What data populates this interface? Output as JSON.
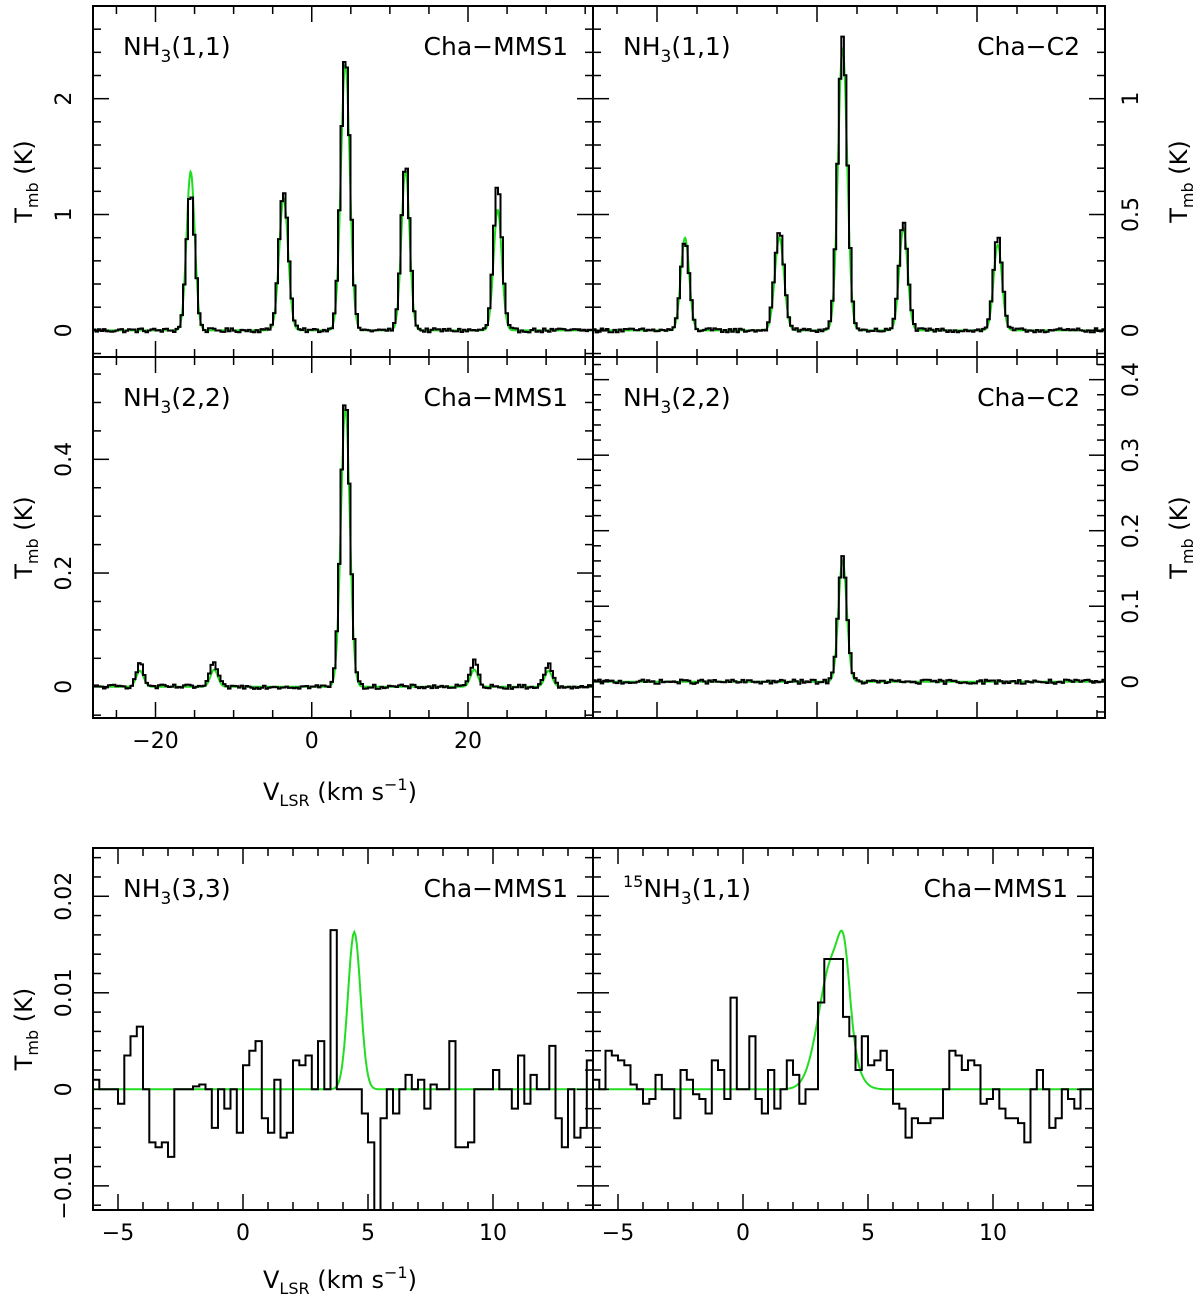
{
  "figure": {
    "axis_labels": {
      "vlsr_main": "V",
      "vlsr_sub": "LSR",
      "vlsr_unit": " (km s",
      "vlsr_exp": "−1",
      "vlsr_close": ")",
      "tmb_main": "T",
      "tmb_sub": "mb",
      "tmb_unit": " (K)"
    },
    "colors": {
      "observed": "#000000",
      "fit": "#22dd22"
    }
  },
  "chart_data": [
    {
      "type": "line",
      "line_label": "NH",
      "line_sub": "3",
      "line_rest": "(1,1)",
      "source": "Cha−MMS1",
      "xlim": [
        -28,
        36
      ],
      "ylim": [
        -0.23,
        2.8
      ],
      "xticks_major": [
        -20,
        0,
        20
      ],
      "yticks_major": [
        0,
        1,
        2
      ],
      "ytick_labels": [
        "0",
        "1",
        "2"
      ],
      "peaks": [
        {
          "v": -15.5,
          "obs": 1.19,
          "fit": 1.37,
          "w": 0.55
        },
        {
          "v": -3.6,
          "obs": 1.21,
          "fit": 1.14,
          "w": 0.6
        },
        {
          "v": 4.3,
          "obs": 2.39,
          "fit": 2.3,
          "w": 0.6
        },
        {
          "v": 12.0,
          "obs": 1.44,
          "fit": 1.38,
          "w": 0.55
        },
        {
          "v": 23.8,
          "obs": 1.25,
          "fit": 1.04,
          "w": 0.55
        }
      ]
    },
    {
      "type": "line",
      "line_label": "NH",
      "line_sub": "3",
      "line_rest": "(1,1)",
      "source": "Cha−C2",
      "xlim": [
        -28,
        36
      ],
      "ylim": [
        -0.115,
        1.4
      ],
      "xticks_major": [
        -20,
        0,
        20
      ],
      "yticks_major": [
        0,
        0.5,
        1
      ],
      "ytick_labels": [
        "0",
        "0.5",
        "1"
      ],
      "peaks": [
        {
          "v": -16.5,
          "obs": 0.38,
          "fit": 0.4,
          "w": 0.55
        },
        {
          "v": -4.7,
          "obs": 0.43,
          "fit": 0.4,
          "w": 0.6
        },
        {
          "v": 3.2,
          "obs": 1.26,
          "fit": 1.22,
          "w": 0.6
        },
        {
          "v": 10.8,
          "obs": 0.47,
          "fit": 0.44,
          "w": 0.55
        },
        {
          "v": 22.6,
          "obs": 0.41,
          "fit": 0.37,
          "w": 0.55
        }
      ]
    },
    {
      "type": "line",
      "line_label": "NH",
      "line_sub": "3",
      "line_rest": "(2,2)",
      "source": "Cha−MMS1",
      "xlim": [
        -28,
        36
      ],
      "ylim": [
        -0.055,
        0.58
      ],
      "xticks_major": [
        -20,
        0,
        20
      ],
      "xtick_labels": [
        "−20",
        "0",
        "20"
      ],
      "yticks_major": [
        0,
        0.2,
        0.4
      ],
      "ytick_labels": [
        "0",
        "0.2",
        "0.4"
      ],
      "peaks": [
        {
          "v": -22.0,
          "obs": 0.04,
          "fit": 0.028,
          "w": 0.5
        },
        {
          "v": -12.5,
          "obs": 0.042,
          "fit": 0.03,
          "w": 0.5
        },
        {
          "v": 4.3,
          "obs": 0.51,
          "fit": 0.49,
          "w": 0.6
        },
        {
          "v": 20.8,
          "obs": 0.045,
          "fit": 0.03,
          "w": 0.5
        },
        {
          "v": 30.3,
          "obs": 0.04,
          "fit": 0.028,
          "w": 0.5
        }
      ]
    },
    {
      "type": "line",
      "line_label": "NH",
      "line_sub": "3",
      "line_rest": "(2,2)",
      "source": "Cha−C2",
      "xlim": [
        -28,
        36
      ],
      "ylim": [
        -0.048,
        0.43
      ],
      "xticks_major": [
        -20,
        0,
        20
      ],
      "yticks_major": [
        0,
        0.1,
        0.2,
        0.3,
        0.4
      ],
      "ytick_labels": [
        "0",
        "0.1",
        "0.2",
        "0.3",
        "0.4"
      ],
      "peaks": [
        {
          "v": 3.2,
          "obs": 0.165,
          "fit": 0.16,
          "w": 0.55
        }
      ]
    },
    {
      "type": "line",
      "line_label": "NH",
      "line_sub": "3",
      "line_rest": "(3,3)",
      "source": "Cha−MMS1",
      "xlim": [
        -6,
        14
      ],
      "ylim": [
        -0.0125,
        0.025
      ],
      "xticks_major": [
        -5,
        0,
        5,
        10
      ],
      "xtick_labels": [
        "−5",
        "0",
        "5",
        "10"
      ],
      "yticks_major": [
        -0.01,
        0,
        0.01,
        0.02
      ],
      "ytick_labels": [
        "−0.01",
        "0",
        "0.01",
        "0.02"
      ],
      "obs_step": {
        "x0": -6,
        "dv": 0.25,
        "y": [
          0.001,
          0.0,
          0.0,
          0.0,
          -0.0015,
          0.0035,
          0.0055,
          0.0065,
          0.0,
          -0.0055,
          -0.006,
          -0.0055,
          -0.007,
          0.0,
          0.0,
          0.0,
          0.0003,
          0.0005,
          0.0,
          -0.004,
          0.0,
          -0.002,
          0.0,
          -0.0045,
          0.0025,
          0.004,
          0.005,
          -0.003,
          -0.0045,
          0.001,
          -0.005,
          -0.0045,
          0.003,
          0.0025,
          0.0035,
          0.0,
          0.005,
          0.0,
          0.0165,
          0.0,
          0.0,
          0.0,
          0.0,
          -0.0025,
          -0.0055,
          -0.0125,
          -0.003,
          0.0,
          -0.0025,
          0.0,
          0.0015,
          0.0,
          0.001,
          -0.002,
          0.0005,
          0.0,
          0.0,
          0.005,
          -0.006,
          -0.006,
          -0.0055,
          0.0,
          0.0,
          0.0,
          0.002,
          0.0,
          0.0,
          -0.002,
          0.0035,
          -0.0015,
          0.0015,
          0.0,
          0.0,
          0.0045,
          -0.003,
          -0.006,
          0.0,
          -0.005,
          -0.004,
          0.003
        ]
      },
      "fit_peaks": [
        {
          "v": 4.45,
          "a": 0.0163,
          "w": 0.25
        }
      ]
    },
    {
      "type": "line",
      "line_label": "NH",
      "line_sup": "15",
      "line_sub": "3",
      "line_rest": "(1,1)",
      "source": "Cha−MMS1",
      "xlim": [
        -6,
        14
      ],
      "ylim": [
        -0.0125,
        0.025
      ],
      "xticks_major": [
        -5,
        0,
        5,
        10
      ],
      "xtick_labels": [
        "−5",
        "0",
        "5",
        "10"
      ],
      "yticks_major": [
        -0.01,
        0,
        0.01,
        0.02
      ],
      "obs_step": {
        "x0": -6,
        "dv": 0.25,
        "y": [
          0.001,
          0.0,
          0.004,
          0.0035,
          0.003,
          0.0025,
          0.0005,
          0.0,
          -0.0015,
          -0.001,
          0.0015,
          0.0,
          0.0,
          -0.003,
          0.002,
          0.001,
          -0.0005,
          -0.001,
          -0.0025,
          0.003,
          0.002,
          -0.001,
          0.0095,
          0.0,
          0.0,
          0.0055,
          -0.001,
          -0.0025,
          0.002,
          -0.002,
          0.0,
          0.003,
          0.0015,
          -0.0015,
          0.0,
          0.0,
          0.009,
          0.0135,
          0.0135,
          0.0135,
          0.0075,
          0.0055,
          0.002,
          0.0055,
          0.0025,
          0.003,
          0.004,
          0.002,
          -0.0015,
          -0.002,
          -0.005,
          -0.003,
          -0.0035,
          -0.0035,
          -0.003,
          -0.003,
          0.0,
          0.004,
          0.0035,
          0.002,
          0.003,
          0.0025,
          -0.0015,
          -0.001,
          0.0,
          -0.002,
          -0.003,
          -0.003,
          -0.0035,
          -0.0055,
          0.0,
          0.002,
          0.0,
          -0.004,
          -0.003,
          0.0,
          -0.001,
          -0.002,
          0.0,
          0.0
        ]
      },
      "fit_peaks": [
        {
          "v": 3.6,
          "a": 0.0135,
          "w": 0.55
        },
        {
          "v": 4.05,
          "a": 0.006,
          "w": 0.22
        }
      ]
    }
  ]
}
